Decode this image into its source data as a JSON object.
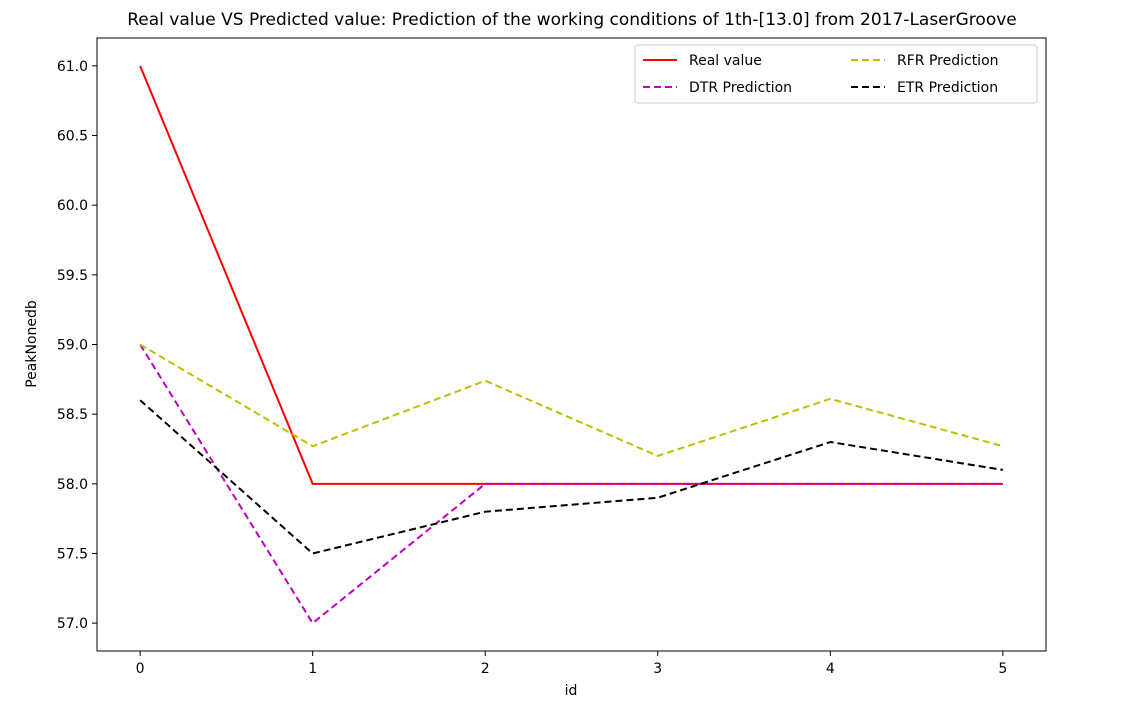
{
  "chart_data": {
    "type": "line",
    "title": "Real value VS Predicted value: Prediction of the working conditions of 1th-[13.0] from 2017-LaserGroove",
    "xlabel": "id",
    "ylabel": "PeakNonedb",
    "x": [
      0,
      1,
      2,
      3,
      4,
      5
    ],
    "xlim": [
      -0.25,
      5.25
    ],
    "ylim": [
      56.8,
      61.2
    ],
    "xticks": [
      "0",
      "1",
      "2",
      "3",
      "4",
      "5"
    ],
    "yticks": [
      "57.0",
      "57.5",
      "58.0",
      "58.5",
      "59.0",
      "59.5",
      "60.0",
      "60.5",
      "61.0"
    ],
    "grid": false,
    "legend_position": "top-right",
    "series": [
      {
        "name": "Real value",
        "color": "#ff0000",
        "dash": "solid",
        "values": [
          61.0,
          58.0,
          58.0,
          58.0,
          58.0,
          58.0
        ]
      },
      {
        "name": "DTR Prediction",
        "color": "#bf00bf",
        "dash": "dashed",
        "values": [
          59.0,
          57.0,
          58.0,
          58.0,
          58.0,
          58.0
        ]
      },
      {
        "name": "RFR Prediction",
        "color": "#bfbf00",
        "dash": "dashed",
        "values": [
          59.0,
          58.27,
          58.74,
          58.2,
          58.61,
          58.27
        ]
      },
      {
        "name": "ETR Prediction",
        "color": "#000000",
        "dash": "dashed",
        "values": [
          58.6,
          57.5,
          57.8,
          57.9,
          58.3,
          58.1
        ]
      }
    ]
  }
}
